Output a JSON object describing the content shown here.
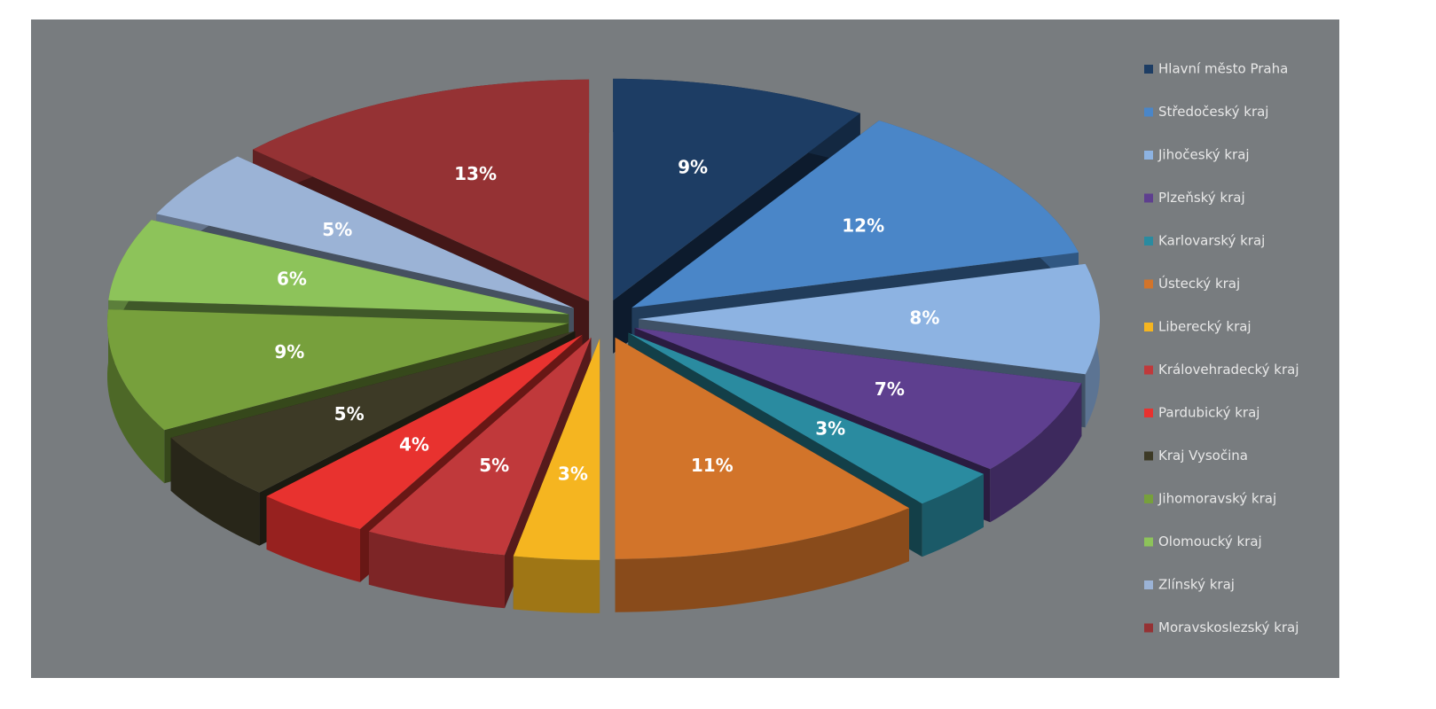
{
  "chart_data": {
    "type": "pie",
    "categories": [
      "Hlavní město Praha",
      "Středočeský kraj",
      "Jihočeský kraj",
      "Plzeňský kraj",
      "Karlovarský kraj",
      "Ústecký kraj",
      "Liberecký kraj",
      "Královehradecký kraj",
      "Pardubický kraj",
      "Kraj Vysočina",
      "Jihomoravský kraj",
      "Olomoucký kraj",
      "Zlínský kraj",
      "Moravskoslezský kraj"
    ],
    "values": [
      9,
      12,
      8,
      7,
      3,
      11,
      3,
      5,
      4,
      5,
      9,
      6,
      5,
      13
    ],
    "value_labels": [
      "9%",
      "12%",
      "8%",
      "7%",
      "3%",
      "11%",
      "3%",
      "5%",
      "4%",
      "5%",
      "9%",
      "6%",
      "5%",
      "13%"
    ],
    "colors": [
      "#1d3d64",
      "#4a86c8",
      "#8db3e2",
      "#5e3f8f",
      "#2a8ba0",
      "#d2742a",
      "#f5b520",
      "#c0393b",
      "#e8322f",
      "#3d3a26",
      "#77a03c",
      "#8dc35a",
      "#9bb3d6",
      "#953234"
    ],
    "legend": "right"
  }
}
